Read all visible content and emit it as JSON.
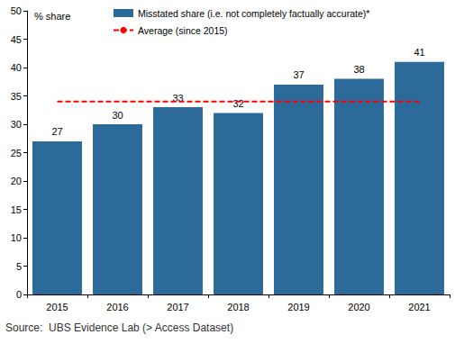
{
  "chart_data": {
    "type": "bar",
    "y_label": "% share",
    "source": "Source:  UBS Evidence Lab (> Access Dataset)",
    "categories": [
      "2015",
      "2016",
      "2017",
      "2018",
      "2019",
      "2020",
      "2021"
    ],
    "series": [
      {
        "name": "Misstated share (i.e. not completely factually accurate)*",
        "type": "bar",
        "color": "#2b6a99",
        "data_labels": true,
        "values": [
          27,
          30,
          33,
          32,
          37,
          38,
          41
        ]
      },
      {
        "name": "Average (since 2015)",
        "type": "line",
        "color": "#ff0000",
        "line_style": "dashed",
        "values": [
          34,
          34,
          34,
          34,
          34,
          34,
          34
        ]
      }
    ],
    "ylim": [
      0,
      50
    ],
    "yticks": [
      0,
      5,
      10,
      15,
      20,
      25,
      30,
      35,
      40,
      45,
      50
    ],
    "grid": false,
    "legend": "top-left"
  }
}
